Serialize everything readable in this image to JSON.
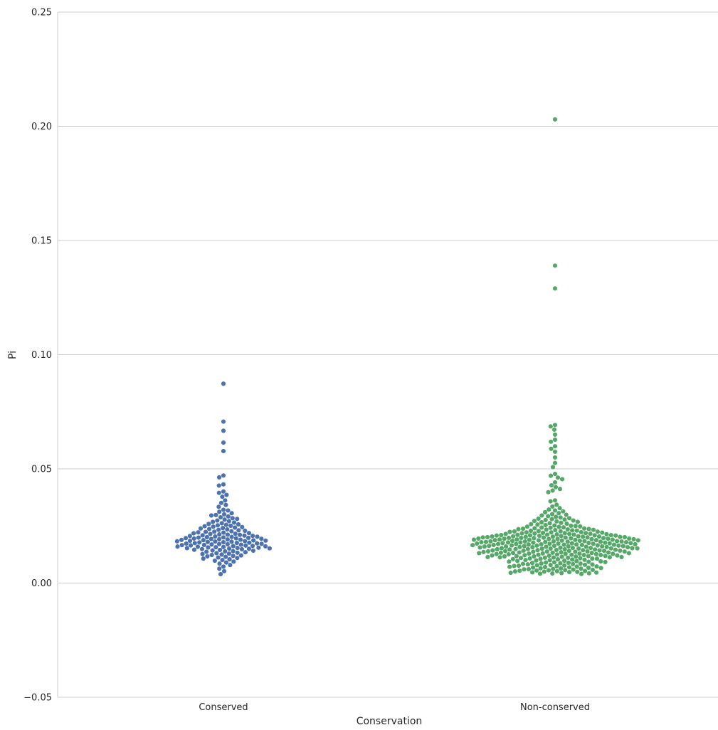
{
  "chart_data": {
    "type": "scatter",
    "subtype": "swarm",
    "title": "",
    "xlabel": "Conservation",
    "ylabel": "Pi",
    "ylim": [
      -0.05,
      0.25
    ],
    "yticks": [
      -0.05,
      0.0,
      0.05,
      0.1,
      0.15,
      0.2,
      0.25
    ],
    "ytick_labels": [
      "−0.05",
      "0.00",
      "0.05",
      "0.10",
      "0.15",
      "0.20",
      "0.25"
    ],
    "categories": [
      "Conserved",
      "Non-conserved"
    ],
    "grid": "horizontal",
    "colors": {
      "Conserved": "#4c72b0",
      "Non-conserved": "#55a868"
    },
    "series": [
      {
        "category": "Conserved",
        "values": [
          0.0873,
          0.0707,
          0.0667,
          0.0615,
          0.0578,
          0.0471,
          0.0463,
          0.0432,
          0.0427,
          0.0401,
          0.0395,
          0.0386,
          0.0378,
          0.0362,
          0.0351,
          0.0342,
          0.0334,
          0.0321,
          0.0318,
          0.0312,
          0.0306,
          0.0301,
          0.0298,
          0.0296,
          0.0292,
          0.0288,
          0.0284,
          0.0281,
          0.0278,
          0.0274,
          0.0271,
          0.0268,
          0.0265,
          0.0262,
          0.0259,
          0.0257,
          0.0255,
          0.0253,
          0.0251,
          0.0249,
          0.0247,
          0.0245,
          0.0243,
          0.0241,
          0.0239,
          0.0237,
          0.0235,
          0.0233,
          0.0231,
          0.0229,
          0.0227,
          0.0225,
          0.0224,
          0.0222,
          0.0221,
          0.0219,
          0.0218,
          0.0216,
          0.0215,
          0.0213,
          0.0212,
          0.0211,
          0.0209,
          0.0208,
          0.0207,
          0.0206,
          0.0204,
          0.0203,
          0.0202,
          0.0201,
          0.02,
          0.0199,
          0.0198,
          0.0197,
          0.0196,
          0.0195,
          0.0194,
          0.0193,
          0.0192,
          0.0191,
          0.019,
          0.0189,
          0.0188,
          0.0187,
          0.0186,
          0.0185,
          0.0184,
          0.0183,
          0.0182,
          0.0181,
          0.018,
          0.0179,
          0.0178,
          0.0177,
          0.0176,
          0.0175,
          0.0174,
          0.0173,
          0.0172,
          0.0171,
          0.017,
          0.0169,
          0.0168,
          0.0167,
          0.0166,
          0.0165,
          0.0164,
          0.0163,
          0.0162,
          0.0161,
          0.016,
          0.0159,
          0.0158,
          0.0157,
          0.0156,
          0.0155,
          0.0154,
          0.0153,
          0.0152,
          0.0151,
          0.015,
          0.0149,
          0.0148,
          0.0146,
          0.0145,
          0.0143,
          0.0142,
          0.014,
          0.0139,
          0.0137,
          0.0135,
          0.0133,
          0.0131,
          0.0129,
          0.0127,
          0.0125,
          0.0123,
          0.0121,
          0.0119,
          0.0117,
          0.0115,
          0.0112,
          0.011,
          0.0107,
          0.0104,
          0.0101,
          0.0098,
          0.0094,
          0.009,
          0.0085,
          0.0079,
          0.0072,
          0.0063,
          0.0052,
          0.0039
        ]
      },
      {
        "category": "Non-conserved",
        "values": [
          0.203,
          0.139,
          0.129,
          0.0692,
          0.0686,
          0.0672,
          0.065,
          0.0628,
          0.0619,
          0.0599,
          0.0588,
          0.0575,
          0.055,
          0.0526,
          0.0508,
          0.0478,
          0.047,
          0.0462,
          0.0455,
          0.0441,
          0.0428,
          0.042,
          0.0412,
          0.0405,
          0.0398,
          0.0362,
          0.0358,
          0.0343,
          0.0335,
          0.0328,
          0.0322,
          0.0318,
          0.0314,
          0.031,
          0.0306,
          0.0302,
          0.0299,
          0.0296,
          0.0293,
          0.029,
          0.0287,
          0.0284,
          0.0282,
          0.028,
          0.0278,
          0.0276,
          0.0274,
          0.0272,
          0.027,
          0.0268,
          0.0266,
          0.0264,
          0.0262,
          0.026,
          0.0258,
          0.0256,
          0.0254,
          0.0252,
          0.0251,
          0.025,
          0.0248,
          0.0247,
          0.0246,
          0.0244,
          0.0243,
          0.0242,
          0.024,
          0.0239,
          0.0238,
          0.0237,
          0.0236,
          0.0235,
          0.0234,
          0.0233,
          0.0232,
          0.0231,
          0.023,
          0.0229,
          0.0228,
          0.0227,
          0.0226,
          0.0225,
          0.0224,
          0.0223,
          0.0222,
          0.0221,
          0.022,
          0.0219,
          0.0218,
          0.0217,
          0.0216,
          0.0215,
          0.0214,
          0.0213,
          0.0212,
          0.0211,
          0.021,
          0.0209,
          0.0208,
          0.0207,
          0.0206,
          0.0205,
          0.0204,
          0.0203,
          0.0202,
          0.0201,
          0.02,
          0.0199,
          0.0198,
          0.0197,
          0.0196,
          0.0195,
          0.0194,
          0.0193,
          0.0192,
          0.0191,
          0.019,
          0.0189,
          0.0188,
          0.0187,
          0.0186,
          0.0185,
          0.0184,
          0.0183,
          0.0182,
          0.0181,
          0.018,
          0.0179,
          0.0178,
          0.0177,
          0.0176,
          0.0175,
          0.0174,
          0.0173,
          0.0172,
          0.0171,
          0.017,
          0.0169,
          0.0168,
          0.0167,
          0.0166,
          0.0165,
          0.0164,
          0.0163,
          0.0162,
          0.0161,
          0.016,
          0.0159,
          0.0158,
          0.0157,
          0.0156,
          0.0155,
          0.0154,
          0.0153,
          0.0152,
          0.0151,
          0.015,
          0.0149,
          0.0148,
          0.0147,
          0.0146,
          0.0145,
          0.0144,
          0.0143,
          0.0142,
          0.0141,
          0.014,
          0.0139,
          0.0138,
          0.0137,
          0.0136,
          0.0135,
          0.0134,
          0.0133,
          0.0132,
          0.0131,
          0.013,
          0.0129,
          0.0128,
          0.0127,
          0.0126,
          0.0125,
          0.0124,
          0.0123,
          0.0122,
          0.0121,
          0.012,
          0.0119,
          0.0118,
          0.0117,
          0.0116,
          0.0115,
          0.0114,
          0.0113,
          0.0112,
          0.0111,
          0.011,
          0.0109,
          0.0108,
          0.0107,
          0.0106,
          0.0105,
          0.0104,
          0.0103,
          0.0102,
          0.0101,
          0.01,
          0.0099,
          0.0098,
          0.0097,
          0.0096,
          0.0095,
          0.0094,
          0.0093,
          0.0092,
          0.0091,
          0.009,
          0.0089,
          0.0088,
          0.0087,
          0.0086,
          0.0085,
          0.0084,
          0.0083,
          0.0082,
          0.0081,
          0.008,
          0.0079,
          0.0078,
          0.0077,
          0.0076,
          0.0075,
          0.0074,
          0.0073,
          0.0072,
          0.0071,
          0.007,
          0.0069,
          0.0068,
          0.0067,
          0.0066,
          0.0065,
          0.0064,
          0.0063,
          0.0062,
          0.0061,
          0.006,
          0.0059,
          0.0058,
          0.0057,
          0.0056,
          0.0055,
          0.0054,
          0.0053,
          0.0052,
          0.0051,
          0.005,
          0.0049,
          0.0048,
          0.0047,
          0.0046,
          0.0045,
          0.0044,
          0.0043,
          0.0042,
          0.0041,
          0.004,
          0.0215,
          0.0205,
          0.0195,
          0.0185,
          0.0175,
          0.0165,
          0.021,
          0.02,
          0.019,
          0.018,
          0.017,
          0.016,
          0.0222,
          0.0212,
          0.0202,
          0.0192,
          0.0182,
          0.0172,
          0.0162,
          0.0152,
          0.0142,
          0.0132,
          0.0208,
          0.0198,
          0.0188,
          0.0178,
          0.0168,
          0.0158,
          0.0148,
          0.0138,
          0.0128,
          0.0118,
          0.0203,
          0.0193,
          0.0183,
          0.0173,
          0.0163,
          0.0153,
          0.0143,
          0.0133,
          0.0123,
          0.0113,
          0.0219,
          0.0209,
          0.0199,
          0.0189,
          0.0179,
          0.0169,
          0.0159,
          0.0149,
          0.0139,
          0.0129,
          0.0204,
          0.0194,
          0.0184,
          0.0174,
          0.0164,
          0.0154,
          0.0144,
          0.0134,
          0.0124,
          0.0114,
          0.0201,
          0.0191,
          0.0181,
          0.0171,
          0.0161,
          0.0151,
          0.0141,
          0.0131,
          0.0121,
          0.0111,
          0.0197,
          0.0187,
          0.0177,
          0.0167,
          0.0157,
          0.0147,
          0.0137,
          0.0127,
          0.0117,
          0.0107
        ]
      }
    ]
  }
}
